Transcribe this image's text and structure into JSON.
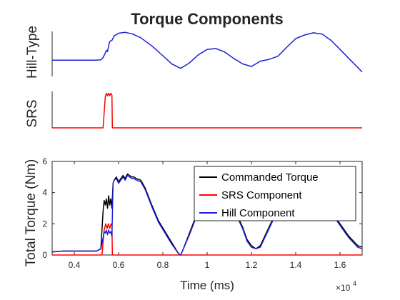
{
  "chart_data": [
    {
      "type": "line",
      "title": "Torque Components",
      "ylabel": "Hill-Type",
      "xlim": [
        3000,
        17000
      ],
      "series": [
        {
          "name": "",
          "color": "#1f1fd6",
          "x": [
            3000,
            4000,
            5000,
            5200,
            5300,
            5400,
            5450,
            5500,
            5550,
            5600,
            5700,
            5800,
            6000,
            6300,
            6600,
            7000,
            7500,
            8000,
            8400,
            8800,
            9200,
            9600,
            10000,
            10400,
            10800,
            11200,
            11600,
            12000,
            12400,
            12800,
            13200,
            13600,
            14000,
            14400,
            14800,
            15200,
            15600,
            16000,
            16400,
            16800,
            17000
          ],
          "y": [
            0.36,
            0.36,
            0.36,
            0.37,
            0.42,
            0.52,
            0.58,
            0.55,
            0.68,
            0.78,
            0.8,
            0.9,
            0.96,
            0.98,
            0.95,
            0.86,
            0.68,
            0.46,
            0.28,
            0.18,
            0.3,
            0.48,
            0.6,
            0.62,
            0.54,
            0.4,
            0.28,
            0.22,
            0.34,
            0.38,
            0.45,
            0.65,
            0.84,
            0.92,
            0.97,
            0.94,
            0.8,
            0.6,
            0.4,
            0.2,
            0.1
          ]
        }
      ]
    },
    {
      "type": "line",
      "ylabel": "SRS",
      "xlim": [
        3000,
        17000
      ],
      "series": [
        {
          "name": "",
          "color": "#ff0000",
          "x": [
            3000,
            5300,
            5400,
            5450,
            5500,
            5550,
            5600,
            5650,
            5700,
            5720,
            17000
          ],
          "y": [
            0,
            0,
            0.85,
            0.95,
            0.88,
            0.95,
            0.88,
            0.95,
            0.9,
            0,
            0
          ]
        }
      ]
    },
    {
      "type": "line",
      "ylabel": "Total Torque (Nm)",
      "xlabel": "Time (ms)",
      "xlim": [
        3000,
        17000
      ],
      "ylim": [
        0,
        6
      ],
      "x_ticks": [
        4000,
        6000,
        8000,
        10000,
        12000,
        14000,
        16000
      ],
      "x_tick_labels": [
        "0.4",
        "0.6",
        "0.8",
        "1",
        "1.2",
        "1.4",
        "1.6"
      ],
      "y_ticks": [
        0,
        2,
        4,
        6
      ],
      "y_tick_labels": [
        "0",
        "2",
        "4",
        "6"
      ],
      "x_exponent": {
        "base": "×10",
        "power": "4"
      },
      "legend_position": "right",
      "series": [
        {
          "name": "Commanded Torque",
          "color": "#000000",
          "x": [
            3000,
            3500,
            4000,
            5000,
            5200,
            5300,
            5350,
            5400,
            5450,
            5500,
            5550,
            5600,
            5650,
            5700,
            5750,
            5800,
            5900,
            6000,
            6200,
            6300,
            6400,
            6500,
            6600,
            6700,
            6800,
            7000,
            7200,
            7500,
            7800,
            8100,
            8400,
            8700,
            8800,
            8900,
            9200,
            9500,
            9800,
            10000,
            10200,
            10400,
            10600,
            10800,
            11000,
            11200,
            11400,
            11600,
            11800,
            12000,
            12200,
            12400,
            12600,
            12800,
            13000,
            13200,
            13400,
            13600,
            13800,
            14000,
            14200,
            14400,
            14600,
            14800,
            15000,
            15200,
            15400,
            15600,
            15800,
            16000,
            16200,
            16400,
            16600,
            16800,
            17000
          ],
          "y": [
            0.2,
            0.25,
            0.25,
            0.25,
            0.4,
            2.8,
            3.5,
            3.2,
            3.6,
            3.0,
            3.8,
            3.2,
            3.6,
            3.0,
            4.6,
            4.8,
            5.0,
            4.7,
            5.1,
            4.9,
            5.2,
            5.1,
            5.0,
            5.0,
            4.9,
            4.8,
            4.3,
            3.2,
            2.2,
            1.5,
            0.8,
            0.1,
            0.0,
            0.3,
            1.4,
            2.5,
            3.0,
            3.1,
            3.0,
            2.8,
            2.9,
            3.0,
            3.1,
            2.9,
            2.4,
            1.8,
            1.0,
            0.6,
            0.4,
            0.6,
            1.2,
            1.8,
            2.4,
            2.8,
            3.1,
            3.2,
            3.2,
            3.1,
            3.1,
            3.2,
            3.1,
            3.0,
            3.0,
            2.9,
            2.8,
            2.7,
            2.4,
            2.0,
            1.6,
            1.2,
            0.9,
            0.6,
            0.5
          ]
        },
        {
          "name": "SRS Component",
          "color": "#ff0000",
          "x": [
            3000,
            5250,
            5350,
            5420,
            5480,
            5540,
            5600,
            5660,
            5700,
            5720,
            17000
          ],
          "y": [
            0,
            0,
            1.6,
            2.0,
            1.7,
            2.0,
            1.7,
            2.0,
            1.9,
            0,
            0
          ]
        },
        {
          "name": "Hill Component",
          "color": "#1f1fd6",
          "x": [
            3000,
            3500,
            4000,
            5000,
            5200,
            5300,
            5350,
            5400,
            5450,
            5500,
            5550,
            5600,
            5650,
            5700,
            5750,
            5800,
            5900,
            6000,
            6200,
            6300,
            6400,
            6500,
            6600,
            6700,
            6800,
            7000,
            7200,
            7500,
            7800,
            8100,
            8400,
            8700,
            8800,
            8900,
            9200,
            9500,
            9800,
            10000,
            10200,
            10400,
            10600,
            10800,
            11000,
            11200,
            11400,
            11600,
            11800,
            12000,
            12200,
            12400,
            12600,
            12800,
            13000,
            13200,
            13400,
            13600,
            13800,
            14000,
            14200,
            14400,
            14600,
            14800,
            15000,
            15200,
            15400,
            15600,
            15800,
            16000,
            16200,
            16400,
            16600,
            16800,
            17000
          ],
          "y": [
            0.2,
            0.25,
            0.25,
            0.25,
            0.4,
            1.1,
            1.5,
            1.4,
            1.6,
            1.3,
            1.6,
            1.4,
            1.5,
            1.2,
            4.6,
            4.8,
            4.9,
            4.6,
            5.0,
            4.8,
            5.1,
            5.0,
            4.9,
            4.9,
            4.8,
            4.7,
            4.2,
            3.1,
            2.1,
            1.4,
            0.7,
            0.1,
            0.0,
            0.3,
            1.3,
            2.4,
            2.9,
            3.0,
            2.9,
            2.7,
            2.8,
            2.9,
            3.0,
            2.8,
            2.3,
            1.7,
            0.9,
            0.5,
            0.4,
            0.5,
            1.1,
            1.7,
            2.3,
            2.7,
            3.0,
            3.1,
            3.1,
            3.0,
            3.0,
            3.1,
            3.0,
            2.9,
            2.9,
            2.8,
            2.7,
            2.6,
            2.3,
            1.9,
            1.5,
            1.1,
            0.8,
            0.5,
            0.4
          ]
        }
      ]
    }
  ]
}
